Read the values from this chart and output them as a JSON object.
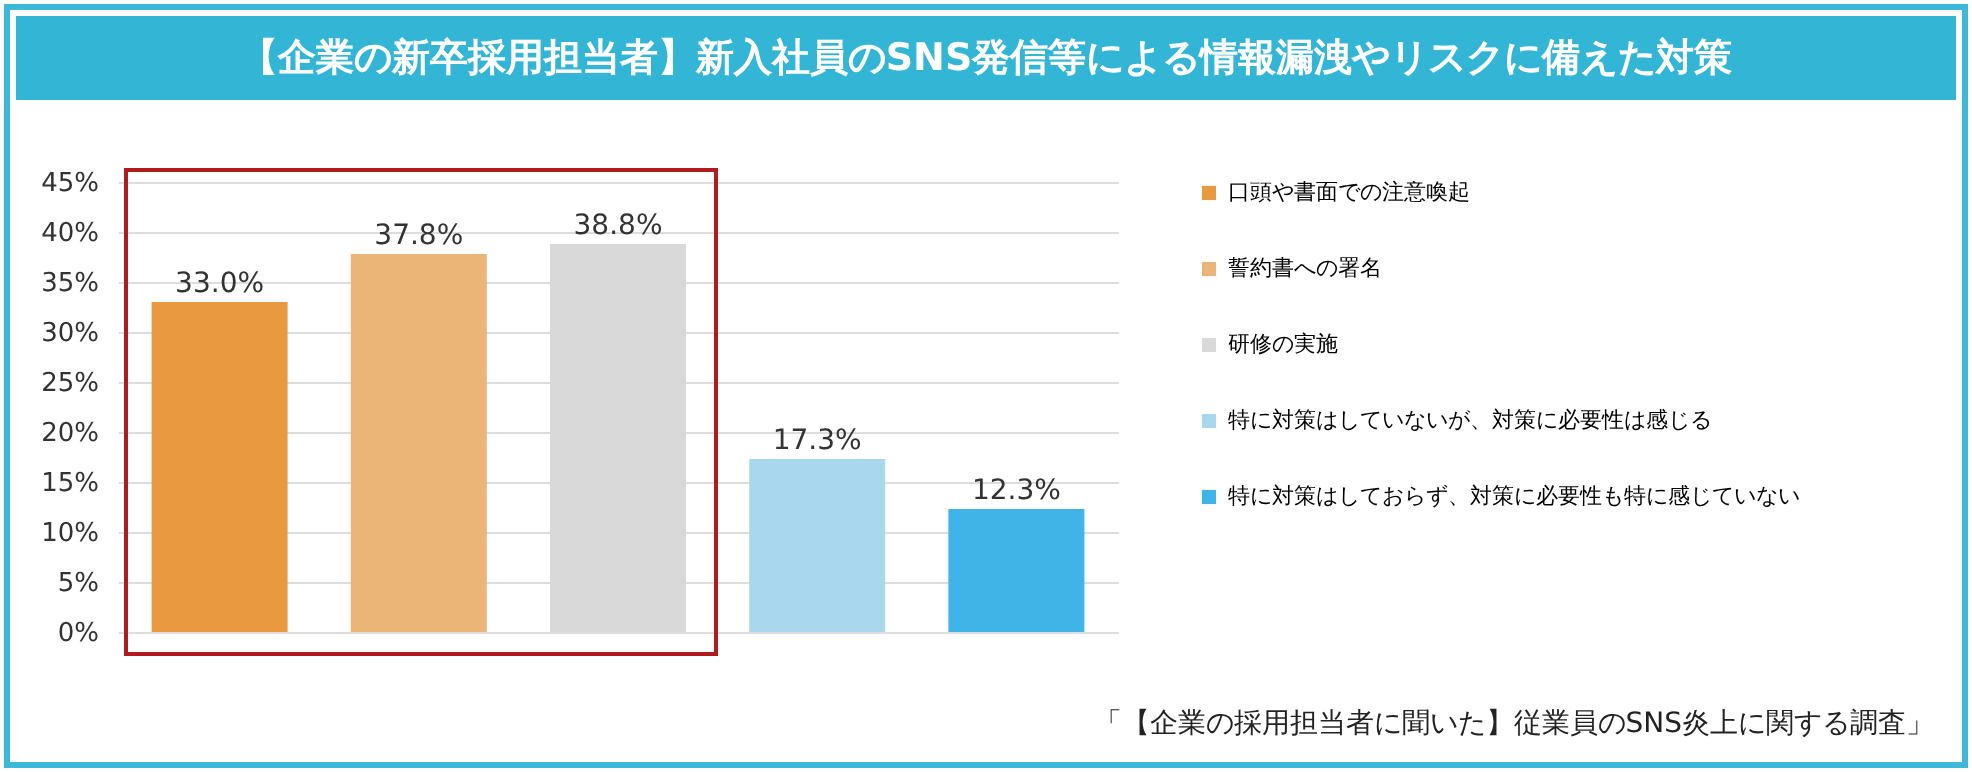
{
  "chart_data": {
    "type": "bar",
    "title": "【企業の新卒採用担当者】新入社員のSNS発信等による情報漏洩やリスクに備えた対策",
    "categories": [
      null,
      null,
      null,
      null,
      null
    ],
    "series": [
      {
        "name": "口頭や書面での注意喚起",
        "color": "#e99a40",
        "values": [
          33.0,
          null,
          null,
          null,
          null
        ],
        "value_labels": [
          "33.0%",
          null,
          null,
          null,
          null
        ]
      },
      {
        "name": "誓約書への署名",
        "color": "#ebb577",
        "values": [
          null,
          37.8,
          null,
          null,
          null
        ],
        "value_labels": [
          null,
          "37.8%",
          null,
          null,
          null
        ]
      },
      {
        "name": "研修の実施",
        "color": "#d9d9d9",
        "values": [
          null,
          null,
          38.8,
          null,
          null
        ],
        "value_labels": [
          null,
          null,
          "38.8%",
          null,
          null
        ]
      },
      {
        "name": "特に対策はしていないが、対策に必要性は感じる",
        "color": "#a9d8ee",
        "values": [
          null,
          null,
          null,
          17.3,
          null
        ],
        "value_labels": [
          null,
          null,
          null,
          "17.3%",
          null
        ]
      },
      {
        "name": "特に対策はしておらず、対策に必要性も特に感じていない",
        "color": "#40b4e6",
        "values": [
          null,
          null,
          null,
          null,
          12.3
        ],
        "value_labels": [
          null,
          null,
          null,
          null,
          "12.3%"
        ]
      }
    ],
    "ylim": [
      0,
      45
    ],
    "yticks": [
      {
        "value": 0,
        "label": "0%"
      },
      {
        "value": 5,
        "label": "5%"
      },
      {
        "value": 10,
        "label": "10%"
      },
      {
        "value": 15,
        "label": "15%"
      },
      {
        "value": 20,
        "label": "20%"
      },
      {
        "value": 25,
        "label": "25%"
      },
      {
        "value": 30,
        "label": "30%"
      },
      {
        "value": 35,
        "label": "35%"
      },
      {
        "value": 40,
        "label": "40%"
      },
      {
        "value": 45,
        "label": "45%"
      }
    ],
    "grid": "y",
    "legend": "right",
    "tick_labels": "y",
    "annotations": [
      "「【企業の採用担当者に聞いた】従業員のSNS炎上に関する調査」"
    ]
  }
}
